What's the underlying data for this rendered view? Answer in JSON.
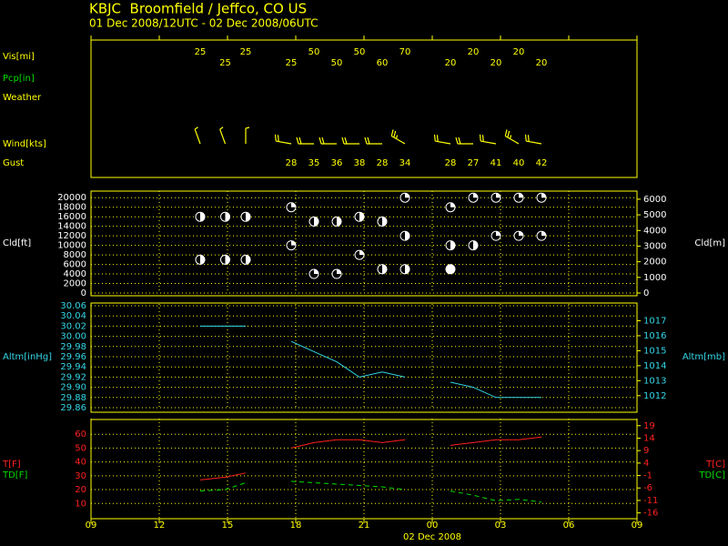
{
  "header": {
    "title": "KBJC  Broomfield / Jeffco, CO US",
    "subtitle": "01 Dec 2008/12UTC - 02 Dec 2008/06UTC"
  },
  "chart_data": [
    {
      "type": "station",
      "color": "#ffff00",
      "x": [
        13.8,
        14.9,
        15.8,
        16.8,
        17.8,
        18.8,
        19.8,
        20.8,
        21.8,
        22.8,
        23.8,
        24.8,
        25.8,
        26.8,
        27.8,
        28.8
      ],
      "xlim": [
        9,
        33
      ],
      "xticks": [
        {
          "value": 9,
          "label": "09"
        },
        12,
        15,
        18,
        21,
        {
          "value": 24,
          "label": "00"
        },
        {
          "value": 27,
          "label": "03"
        },
        {
          "value": 30,
          "label": "06"
        },
        {
          "value": 33,
          "label": "09"
        }
      ],
      "xlabel": "02 Dec 2008",
      "labels": {
        "vis": "Vis[mi]",
        "pcp": "Pcp[in]",
        "weather": "Weather",
        "wind": "Wind[kts]",
        "gust": "Gust"
      },
      "vis": [
        25,
        25,
        25,
        null,
        25,
        50,
        50,
        50,
        60,
        70,
        null,
        20,
        20,
        20,
        20,
        20
      ],
      "wind_dir": [
        340,
        340,
        360,
        null,
        280,
        270,
        270,
        270,
        270,
        300,
        null,
        280,
        270,
        280,
        300,
        280
      ],
      "wind_speed": [
        5,
        5,
        5,
        null,
        20,
        20,
        20,
        20,
        20,
        25,
        null,
        20,
        20,
        20,
        25,
        20
      ],
      "gust": [
        null,
        null,
        null,
        null,
        28,
        35,
        36,
        38,
        28,
        34,
        null,
        28,
        27,
        41,
        40,
        42
      ]
    },
    {
      "type": "cloud",
      "color": "#ffffff",
      "ylabel": "Cld[ft]",
      "y2label": "Cld[m]",
      "ylim": [
        0,
        21000
      ],
      "yticks": [
        0,
        2000,
        4000,
        6000,
        8000,
        10000,
        12000,
        14000,
        16000,
        18000,
        20000
      ],
      "y2lim": [
        0,
        6401
      ],
      "y2ticks": [
        0,
        1000,
        2000,
        3000,
        4000,
        5000,
        6000
      ],
      "layers": [
        {
          "values": [
            16000,
            16000,
            16000,
            null,
            18000,
            15000,
            15000,
            16000,
            15000,
            20000,
            null,
            18000,
            20000,
            20000,
            20000,
            20000
          ],
          "cover": [
            0.5,
            0.5,
            0.5,
            null,
            0.25,
            0.5,
            0.5,
            0.5,
            0.5,
            0.25,
            null,
            0.25,
            0.25,
            0.25,
            0.25,
            0.25
          ]
        },
        {
          "values": [
            7000,
            7000,
            7000,
            null,
            10000,
            4000,
            4000,
            8000,
            5000,
            12000,
            null,
            10000,
            10000,
            12000,
            12000,
            12000
          ],
          "cover": [
            0.5,
            0.5,
            0.5,
            null,
            0.25,
            0.25,
            0.25,
            0.25,
            0.5,
            0.5,
            null,
            0.5,
            0.5,
            0.25,
            0.25,
            0.25
          ]
        },
        {
          "values": [
            null,
            null,
            null,
            null,
            null,
            null,
            null,
            null,
            null,
            5000,
            null,
            5000,
            null,
            null,
            null,
            null
          ],
          "cover": [
            null,
            null,
            null,
            null,
            null,
            null,
            null,
            null,
            null,
            0.5,
            null,
            1,
            null,
            null,
            null,
            null
          ]
        }
      ]
    },
    {
      "type": "line",
      "color": "#33d6e6",
      "ylabel": "Altm[inHg]",
      "y2label": "Altm[mb]",
      "ylim": [
        29.86,
        30.06
      ],
      "yticks": [
        29.86,
        29.88,
        {
          "value": 29.9,
          "label": "29.90"
        },
        29.92,
        29.94,
        29.96,
        29.98,
        {
          "value": 30,
          "label": "30.00"
        },
        30.02,
        30.04,
        30.06
      ],
      "y2lim": [
        1011.2,
        1018.0
      ],
      "y2ticks": [
        1012,
        1013,
        1014,
        1015,
        1016,
        1017
      ],
      "series": [
        {
          "color": "#33d6e6",
          "dash": false,
          "values": [
            30.02,
            30.02,
            30.02,
            null,
            29.99,
            29.97,
            29.95,
            29.92,
            29.93,
            29.92,
            null,
            29.91,
            29.9,
            29.88,
            29.88,
            29.88
          ]
        }
      ]
    },
    {
      "type": "line",
      "ylabel": [
        "T[F]",
        "TD[F]"
      ],
      "y2label": [
        "T[C]",
        "TD[C]"
      ],
      "ylim": [
        -1,
        70
      ],
      "yticks": [
        10,
        20,
        30,
        40,
        50,
        60
      ],
      "y2lim": [
        -18.33,
        21.11
      ],
      "y2ticks": [
        19,
        14,
        9,
        4,
        -1,
        -6,
        -11,
        -16
      ],
      "series": [
        {
          "color": "#ff2020",
          "dash": false,
          "values": [
            27,
            29,
            32,
            null,
            50,
            54,
            56,
            56,
            54,
            56,
            null,
            52,
            54,
            56,
            56,
            58
          ]
        },
        {
          "color": "#00dd00",
          "dash": true,
          "values": [
            19,
            20,
            25,
            null,
            26,
            25,
            24,
            23,
            22,
            20,
            null,
            19,
            16,
            12,
            13,
            11
          ]
        }
      ]
    }
  ]
}
